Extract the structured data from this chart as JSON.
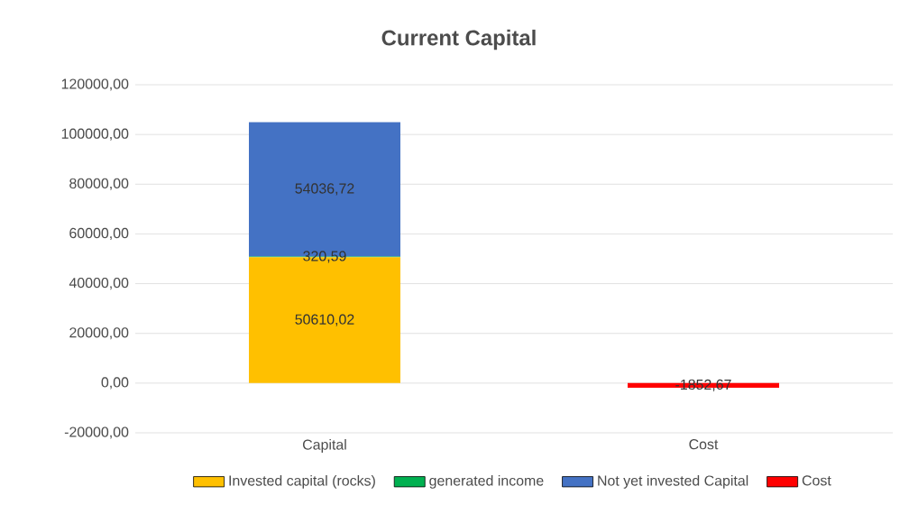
{
  "chart_data": {
    "type": "bar",
    "title": "Current Capital",
    "stacked": true,
    "categories": [
      "Capital",
      "Cost"
    ],
    "series": [
      {
        "name": "Invested capital (rocks)",
        "color": "#ffc000",
        "values": [
          50610.02,
          null
        ],
        "value_labels": [
          "50610,02",
          null
        ]
      },
      {
        "name": "generated income",
        "color": "#00b050",
        "values": [
          320.59,
          null
        ],
        "value_labels": [
          "320,59",
          null
        ]
      },
      {
        "name": "Not yet invested Capital",
        "color": "#4472c4",
        "values": [
          54036.72,
          null
        ],
        "value_labels": [
          "54036,72",
          null
        ]
      },
      {
        "name": "Cost",
        "color": "#ff0000",
        "values": [
          null,
          -1852.67
        ],
        "value_labels": [
          null,
          "-1852,67"
        ]
      }
    ],
    "ylim": [
      -20000,
      120000
    ],
    "yticks": [
      {
        "value": -20000,
        "label": "-20000,00"
      },
      {
        "value": 0,
        "label": "0,00"
      },
      {
        "value": 20000,
        "label": "20000,00"
      },
      {
        "value": 40000,
        "label": "40000,00"
      },
      {
        "value": 60000,
        "label": "60000,00"
      },
      {
        "value": 80000,
        "label": "80000,00"
      },
      {
        "value": 100000,
        "label": "100000,00"
      },
      {
        "value": 120000,
        "label": "120000,00"
      }
    ],
    "grid": "y",
    "legend": "bottom"
  }
}
